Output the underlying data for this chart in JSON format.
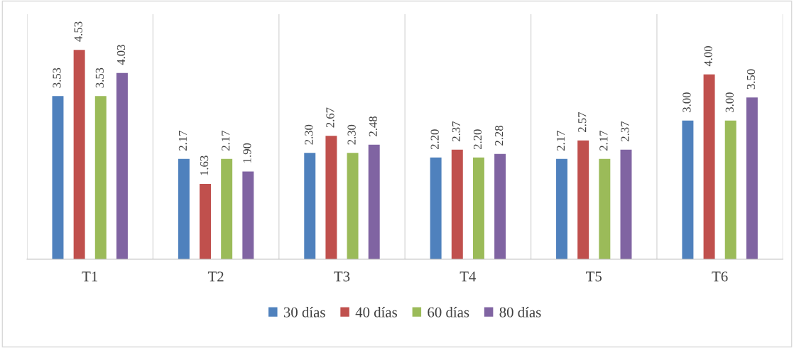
{
  "chart_data": {
    "type": "bar",
    "categories": [
      "T1",
      "T2",
      "T3",
      "T4",
      "T5",
      "T6"
    ],
    "series": [
      {
        "name": "30 días",
        "color": "#4f81bd",
        "values": [
          3.53,
          2.17,
          2.3,
          2.2,
          2.17,
          3.0
        ],
        "value_labels": [
          "3.53",
          "2.17",
          "2.30",
          "2.20",
          "2.17",
          "3.00"
        ]
      },
      {
        "name": "40 días",
        "color": "#c0504d",
        "values": [
          4.53,
          1.63,
          2.67,
          2.37,
          2.57,
          4.0
        ],
        "value_labels": [
          "4.53",
          "1.63",
          "2.67",
          "2.37",
          "2.57",
          "4.00"
        ]
      },
      {
        "name": "60 días",
        "color": "#9bbb59",
        "values": [
          3.53,
          2.17,
          2.3,
          2.2,
          2.17,
          3.0
        ],
        "value_labels": [
          "3.53",
          "2.17",
          "2.30",
          "2.20",
          "2.17",
          "3.00"
        ]
      },
      {
        "name": "80 días",
        "color": "#8064a2",
        "values": [
          4.03,
          1.9,
          2.48,
          2.28,
          2.37,
          3.5
        ],
        "value_labels": [
          "4.03",
          "1.90",
          "2.48",
          "2.28",
          "2.37",
          "3.50"
        ]
      }
    ],
    "ylim": [
      0,
      5.3
    ],
    "tick_labels": "x",
    "grid": "x",
    "legend": "bottom"
  }
}
